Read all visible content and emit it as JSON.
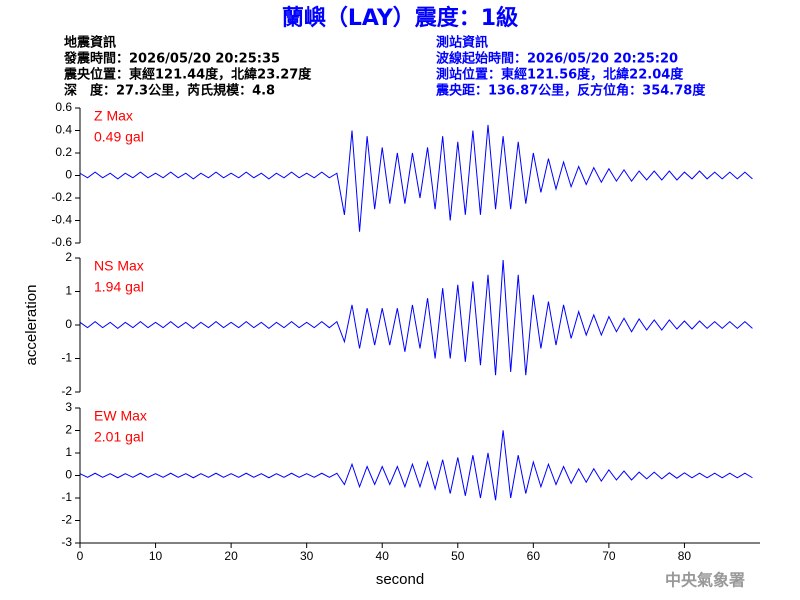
{
  "header": {
    "title": "蘭嶼（LAY）震度：1級",
    "left": [
      "地震資訊",
      "發震時間：2026/05/20 20:25:35",
      "震央位置：東經121.44度，北緯23.27度",
      "深　度：27.3公里，芮氏規模：4.8"
    ],
    "right": [
      "測站資訊",
      "波線起始時間：2026/05/20 20:25:20",
      "測站位置：東經121.56度，北緯22.04度",
      "震央距：136.87公里，反方位角：354.78度"
    ],
    "watermark": "中央氣象署"
  },
  "chart_data": [
    {
      "type": "line",
      "max_label": "Z Max",
      "max_value_label": "0.49 gal",
      "color": "#0000ff",
      "xlim": [
        0,
        90
      ],
      "ylim": [
        -0.6,
        0.6
      ],
      "yticks": [
        0.6,
        0.4,
        0.2,
        0,
        -0.2,
        -0.4,
        -0.6
      ],
      "x": [
        0,
        1,
        2,
        3,
        4,
        5,
        6,
        7,
        8,
        9,
        10,
        11,
        12,
        13,
        14,
        15,
        16,
        17,
        18,
        19,
        20,
        21,
        22,
        23,
        24,
        25,
        26,
        27,
        28,
        29,
        30,
        31,
        32,
        33,
        34,
        35,
        36,
        37,
        38,
        39,
        40,
        41,
        42,
        43,
        44,
        45,
        46,
        47,
        48,
        49,
        50,
        51,
        52,
        53,
        54,
        55,
        56,
        57,
        58,
        59,
        60,
        61,
        62,
        63,
        64,
        65,
        66,
        67,
        68,
        69,
        70,
        71,
        72,
        73,
        74,
        75,
        76,
        77,
        78,
        79,
        80,
        81,
        82,
        83,
        84,
        85,
        86,
        87,
        88,
        89
      ],
      "values": [
        0.02,
        -0.02,
        0.03,
        -0.02,
        0.02,
        -0.03,
        0.02,
        -0.02,
        0.03,
        -0.02,
        0.02,
        -0.02,
        0.03,
        -0.02,
        0.02,
        -0.03,
        0.02,
        -0.02,
        0.03,
        -0.02,
        0.02,
        -0.02,
        0.03,
        -0.02,
        0.02,
        -0.03,
        0.02,
        -0.02,
        0.03,
        -0.02,
        0.02,
        -0.02,
        0.03,
        -0.02,
        0.02,
        -0.35,
        0.4,
        -0.5,
        0.35,
        -0.3,
        0.25,
        -0.25,
        0.2,
        -0.25,
        0.2,
        -0.2,
        0.25,
        -0.3,
        0.35,
        -0.4,
        0.3,
        -0.35,
        0.4,
        -0.35,
        0.45,
        -0.3,
        0.35,
        -0.3,
        0.3,
        -0.25,
        0.2,
        -0.15,
        0.15,
        -0.12,
        0.12,
        -0.1,
        0.08,
        -0.08,
        0.07,
        -0.06,
        0.06,
        -0.05,
        0.05,
        -0.05,
        0.04,
        -0.04,
        0.04,
        -0.04,
        0.04,
        -0.04,
        0.03,
        -0.03,
        0.04,
        -0.03,
        0.03,
        -0.03,
        0.03,
        -0.03,
        0.03,
        -0.03
      ]
    },
    {
      "type": "line",
      "max_label": "NS Max",
      "max_value_label": "1.94 gal",
      "ylabel": "acceleration",
      "color": "#0000ff",
      "xlim": [
        0,
        90
      ],
      "ylim": [
        -2,
        2
      ],
      "yticks": [
        2,
        1,
        0,
        -1,
        -2
      ],
      "x": [
        0,
        1,
        2,
        3,
        4,
        5,
        6,
        7,
        8,
        9,
        10,
        11,
        12,
        13,
        14,
        15,
        16,
        17,
        18,
        19,
        20,
        21,
        22,
        23,
        24,
        25,
        26,
        27,
        28,
        29,
        30,
        31,
        32,
        33,
        34,
        35,
        36,
        37,
        38,
        39,
        40,
        41,
        42,
        43,
        44,
        45,
        46,
        47,
        48,
        49,
        50,
        51,
        52,
        53,
        54,
        55,
        56,
        57,
        58,
        59,
        60,
        61,
        62,
        63,
        64,
        65,
        66,
        67,
        68,
        69,
        70,
        71,
        72,
        73,
        74,
        75,
        76,
        77,
        78,
        79,
        80,
        81,
        82,
        83,
        84,
        85,
        86,
        87,
        88,
        89
      ],
      "values": [
        0.08,
        -0.08,
        0.1,
        -0.08,
        0.08,
        -0.1,
        0.08,
        -0.08,
        0.1,
        -0.08,
        0.08,
        -0.08,
        0.1,
        -0.08,
        0.08,
        -0.1,
        0.08,
        -0.08,
        0.1,
        -0.08,
        0.08,
        -0.08,
        0.1,
        -0.08,
        0.08,
        -0.1,
        0.08,
        -0.08,
        0.1,
        -0.08,
        0.08,
        -0.08,
        0.1,
        -0.08,
        0.1,
        -0.5,
        0.6,
        -0.7,
        0.5,
        -0.6,
        0.5,
        -0.6,
        0.5,
        -0.8,
        0.6,
        -0.7,
        0.8,
        -1.0,
        1.1,
        -1.0,
        1.2,
        -1.1,
        1.3,
        -1.2,
        1.5,
        -1.5,
        1.94,
        -1.4,
        1.5,
        -1.5,
        0.9,
        -0.7,
        0.7,
        -0.6,
        0.6,
        -0.4,
        0.4,
        -0.3,
        0.3,
        -0.3,
        0.25,
        -0.2,
        0.2,
        -0.2,
        0.18,
        -0.15,
        0.15,
        -0.15,
        0.15,
        -0.12,
        0.12,
        -0.12,
        0.12,
        -0.1,
        0.1,
        -0.1,
        0.1,
        -0.1,
        0.1,
        -0.1
      ]
    },
    {
      "type": "line",
      "max_label": "EW Max",
      "max_value_label": "2.01 gal",
      "xlabel": "second",
      "color": "#0000ff",
      "xlim": [
        0,
        90
      ],
      "xticks": [
        0,
        10,
        20,
        30,
        40,
        50,
        60,
        70,
        80
      ],
      "ylim": [
        -3,
        3
      ],
      "yticks": [
        3,
        2,
        1,
        0,
        -1,
        -2,
        -3
      ],
      "x": [
        0,
        1,
        2,
        3,
        4,
        5,
        6,
        7,
        8,
        9,
        10,
        11,
        12,
        13,
        14,
        15,
        16,
        17,
        18,
        19,
        20,
        21,
        22,
        23,
        24,
        25,
        26,
        27,
        28,
        29,
        30,
        31,
        32,
        33,
        34,
        35,
        36,
        37,
        38,
        39,
        40,
        41,
        42,
        43,
        44,
        45,
        46,
        47,
        48,
        49,
        50,
        51,
        52,
        53,
        54,
        55,
        56,
        57,
        58,
        59,
        60,
        61,
        62,
        63,
        64,
        65,
        66,
        67,
        68,
        69,
        70,
        71,
        72,
        73,
        74,
        75,
        76,
        77,
        78,
        79,
        80,
        81,
        82,
        83,
        84,
        85,
        86,
        87,
        88,
        89
      ],
      "values": [
        0.08,
        -0.08,
        0.1,
        -0.08,
        0.08,
        -0.1,
        0.08,
        -0.08,
        0.1,
        -0.08,
        0.08,
        -0.08,
        0.1,
        -0.08,
        0.08,
        -0.1,
        0.08,
        -0.08,
        0.1,
        -0.08,
        0.08,
        -0.08,
        0.1,
        -0.08,
        0.08,
        -0.1,
        0.08,
        -0.08,
        0.1,
        -0.08,
        0.08,
        -0.08,
        0.1,
        -0.08,
        0.1,
        -0.4,
        0.5,
        -0.5,
        0.4,
        -0.4,
        0.4,
        -0.4,
        0.4,
        -0.5,
        0.5,
        -0.5,
        0.6,
        -0.6,
        0.7,
        -0.8,
        0.8,
        -0.9,
        0.9,
        -1.0,
        1.0,
        -1.1,
        2.01,
        -1.0,
        0.9,
        -0.8,
        0.6,
        -0.5,
        0.5,
        -0.4,
        0.4,
        -0.35,
        0.3,
        -0.3,
        0.3,
        -0.25,
        0.25,
        -0.2,
        0.2,
        -0.2,
        0.15,
        -0.15,
        0.15,
        -0.15,
        0.12,
        -0.12,
        0.12,
        -0.1,
        0.1,
        -0.1,
        0.1,
        -0.1,
        0.1,
        -0.1,
        0.1,
        -0.1
      ]
    }
  ]
}
